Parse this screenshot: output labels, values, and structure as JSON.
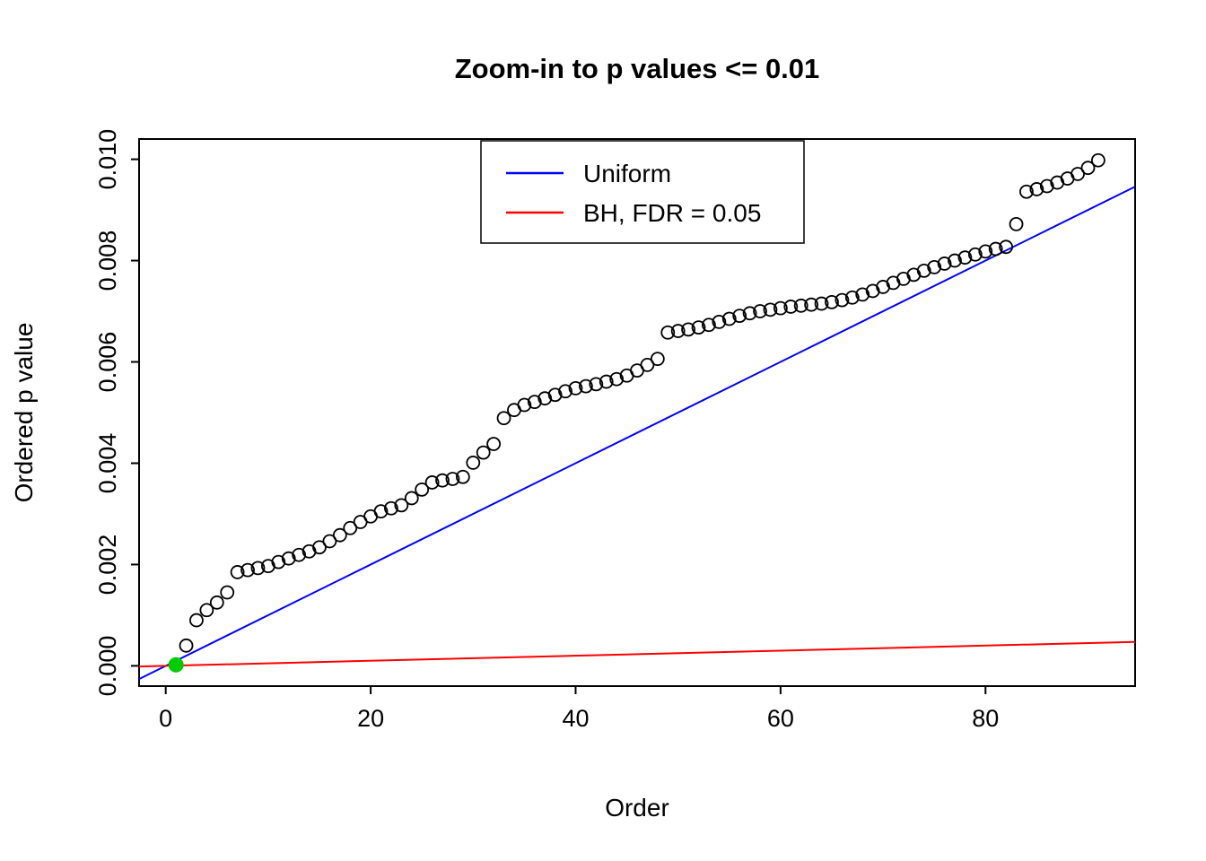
{
  "chart_data": {
    "type": "scatter",
    "title": "Zoom-in to p values <= 0.01",
    "xlabel": "Order",
    "ylabel": "Ordered p value",
    "background_color": "#FFFFFF",
    "axes": {
      "xlim": [
        -2.6,
        94.6
      ],
      "ylim": [
        -0.0004,
        0.0104
      ],
      "grid": false,
      "xticks": [
        {
          "value": 0,
          "label": "0"
        },
        {
          "value": 20,
          "label": "20"
        },
        {
          "value": 40,
          "label": "40"
        },
        {
          "value": 60,
          "label": "60"
        },
        {
          "value": 80,
          "label": "80"
        }
      ],
      "yticks": [
        {
          "value": 0.0,
          "label": "0.000"
        },
        {
          "value": 0.002,
          "label": "0.002"
        },
        {
          "value": 0.004,
          "label": "0.004"
        },
        {
          "value": 0.006,
          "label": "0.006"
        },
        {
          "value": 0.008,
          "label": "0.008"
        },
        {
          "value": 0.01,
          "label": "0.010"
        }
      ]
    },
    "points": {
      "name": "ordered-p-values",
      "marker": "open-circle",
      "color": "#000000",
      "x": [
        1,
        2,
        3,
        4,
        5,
        6,
        7,
        8,
        9,
        10,
        11,
        12,
        13,
        14,
        15,
        16,
        17,
        18,
        19,
        20,
        21,
        22,
        23,
        24,
        25,
        26,
        27,
        28,
        29,
        30,
        31,
        32,
        33,
        34,
        35,
        36,
        37,
        38,
        39,
        40,
        41,
        42,
        43,
        44,
        45,
        46,
        47,
        48,
        49,
        50,
        51,
        52,
        53,
        54,
        55,
        56,
        57,
        58,
        59,
        60,
        61,
        62,
        63,
        64,
        65,
        66,
        67,
        68,
        69,
        70,
        71,
        72,
        73,
        74,
        75,
        76,
        77,
        78,
        79,
        80,
        81,
        82,
        83,
        84,
        85,
        86,
        87,
        88,
        89,
        90,
        91
      ],
      "y": [
        2e-05,
        0.0004,
        0.0009,
        0.0011,
        0.00125,
        0.00145,
        0.00185,
        0.00189,
        0.00193,
        0.00197,
        0.00205,
        0.00212,
        0.00219,
        0.00226,
        0.00234,
        0.00246,
        0.00258,
        0.00272,
        0.00284,
        0.00295,
        0.00305,
        0.00311,
        0.00317,
        0.00331,
        0.00348,
        0.00362,
        0.00366,
        0.00369,
        0.00373,
        0.00401,
        0.00421,
        0.00438,
        0.00489,
        0.00505,
        0.00515,
        0.00521,
        0.00528,
        0.00535,
        0.00542,
        0.00548,
        0.00552,
        0.00556,
        0.00561,
        0.00566,
        0.00573,
        0.00583,
        0.00594,
        0.00606,
        0.00658,
        0.00661,
        0.00664,
        0.00668,
        0.00673,
        0.00679,
        0.00685,
        0.00691,
        0.00696,
        0.007,
        0.00703,
        0.00706,
        0.00709,
        0.00711,
        0.00713,
        0.00715,
        0.00718,
        0.00722,
        0.00727,
        0.00733,
        0.0074,
        0.00748,
        0.00756,
        0.00764,
        0.00772,
        0.0078,
        0.00787,
        0.00794,
        0.008,
        0.00806,
        0.00812,
        0.00818,
        0.00823,
        0.00827,
        0.00872,
        0.00936,
        0.00941,
        0.00947,
        0.00954,
        0.00962,
        0.00971,
        0.00983,
        0.00998
      ]
    },
    "highlight_point": {
      "x": 1,
      "y": 2e-05,
      "color": "#00CC00"
    },
    "lines": [
      {
        "name": "uniform",
        "label": "Uniform",
        "color": "#0000FF",
        "slope": 0.0001,
        "intercept": 0
      },
      {
        "name": "bh",
        "label": "BH, FDR = 0.05",
        "color": "#FF0000",
        "slope": 5e-06,
        "intercept": 0
      }
    ],
    "legend": {
      "position": "top-center",
      "entries": [
        {
          "label": "Uniform",
          "color": "#0000FF"
        },
        {
          "label": "BH, FDR = 0.05",
          "color": "#FF0000"
        }
      ]
    }
  }
}
